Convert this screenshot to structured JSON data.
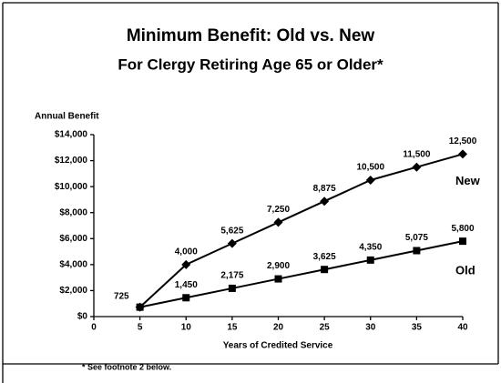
{
  "chart_data": {
    "type": "line",
    "title": "Minimum Benefit:  Old vs. New",
    "subtitle": "For Clergy Retiring Age 65 or Older*",
    "y_label": "Annual Benefit",
    "x_label": "Years of Credited Service",
    "footnote": "* See footnote 2 below.",
    "x": [
      5,
      10,
      15,
      20,
      25,
      30,
      35,
      40
    ],
    "series": [
      {
        "name": "New",
        "color": "#000000",
        "marker": "diamond",
        "values": [
          725,
          4000,
          5625,
          7250,
          8875,
          10500,
          11500,
          12500
        ],
        "value_labels": [
          "725",
          "4,000",
          "5,625",
          "7,250",
          "8,875",
          "10,500",
          "11,500",
          "12,500"
        ]
      },
      {
        "name": "Old",
        "color": "#000000",
        "marker": "square",
        "values": [
          725,
          1450,
          2175,
          2900,
          3625,
          4350,
          5075,
          5800
        ],
        "value_labels": [
          null,
          "1,450",
          "2,175",
          "2,900",
          "3,625",
          "4,350",
          "5,075",
          "5,800"
        ]
      }
    ],
    "xlim": [
      0,
      40
    ],
    "xticks": [
      0,
      5,
      10,
      15,
      20,
      25,
      30,
      35,
      40
    ],
    "ylim": [
      0,
      14000
    ],
    "yticks": [
      {
        "value": 0,
        "label": "$0"
      },
      {
        "value": 2000,
        "label": "$2,000"
      },
      {
        "value": 4000,
        "label": "$4,000"
      },
      {
        "value": 6000,
        "label": "$6,000"
      },
      {
        "value": 8000,
        "label": "$8,000"
      },
      {
        "value": 10000,
        "label": "$10,000"
      },
      {
        "value": 12000,
        "label": "$12,000"
      },
      {
        "value": 14000,
        "label": "$14,000"
      }
    ],
    "grid": false
  }
}
